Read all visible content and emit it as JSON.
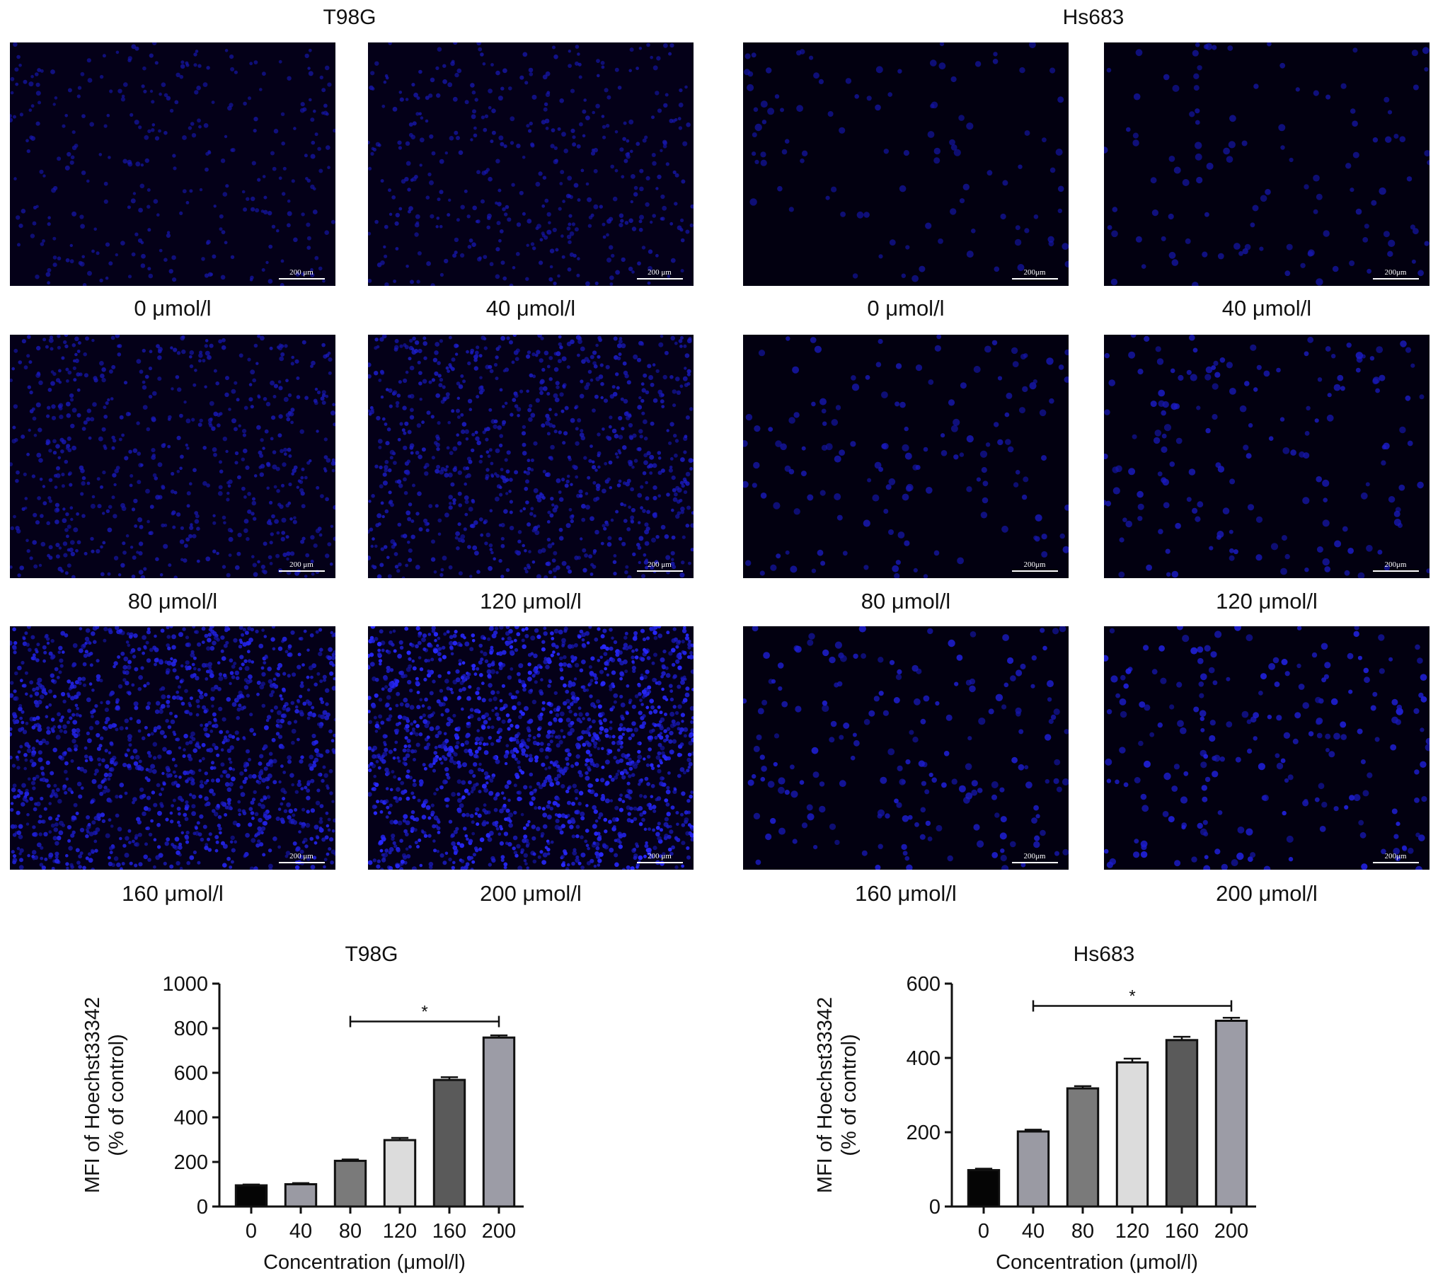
{
  "micrographs": {
    "groups": [
      {
        "title": "T98G",
        "panels": [
          {
            "caption": "0 μmol/l",
            "scale_bar": "200 μm",
            "density": 0.15
          },
          {
            "caption": "40 μmol/l",
            "scale_bar": "200 μm",
            "density": 0.22
          },
          {
            "caption": "80 μmol/l",
            "scale_bar": "200 μm",
            "density": 0.35
          },
          {
            "caption": "120 μmol/l",
            "scale_bar": "200 μm",
            "density": 0.5
          },
          {
            "caption": "160 μmol/l",
            "scale_bar": "200 μm",
            "density": 0.8
          },
          {
            "caption": "200 μmol/l",
            "scale_bar": "200 μm",
            "density": 1.0
          }
        ]
      },
      {
        "title": "Hs683",
        "panels": [
          {
            "caption": "0 μmol/l",
            "scale_bar": "200μm",
            "density": 0.12
          },
          {
            "caption": "40 μmol/l",
            "scale_bar": "200μm",
            "density": 0.18
          },
          {
            "caption": "80 μmol/l",
            "scale_bar": "200μm",
            "density": 0.35
          },
          {
            "caption": "120 μmol/l",
            "scale_bar": "200μm",
            "density": 0.45
          },
          {
            "caption": "160 μmol/l",
            "scale_bar": "200μm",
            "density": 0.6
          },
          {
            "caption": "200 μmol/l",
            "scale_bar": "200μm",
            "density": 0.7
          }
        ]
      }
    ]
  },
  "chart_data": [
    {
      "type": "bar",
      "title": "T98G",
      "xlabel": "Concentration (μmol/l)",
      "ylabel": "MFI of Hoechst33342 (% of control)",
      "ylabel_lines": [
        "MFI of Hoechst33342",
        "(% of control)"
      ],
      "categories": [
        "0",
        "40",
        "80",
        "120",
        "160",
        "200"
      ],
      "values": [
        95,
        100,
        205,
        298,
        568,
        758
      ],
      "errors": [
        4,
        5,
        6,
        10,
        12,
        10
      ],
      "ylim": [
        0,
        1000
      ],
      "yticks": [
        0,
        200,
        400,
        600,
        800,
        1000
      ],
      "bar_colors": [
        "#050505",
        "#9a9aa3",
        "#7a7a7a",
        "#dcdcdc",
        "#5a5a5a",
        "#9c9ca6"
      ],
      "significance": {
        "from": "80",
        "to": "200",
        "label": "*",
        "y": 830
      }
    },
    {
      "type": "bar",
      "title": "Hs683",
      "xlabel": "Concentration (μmol/l)",
      "ylabel": "MFI of Hoechst33342 (% of control)",
      "ylabel_lines": [
        "MFI of Hoechst33342",
        "(% of control)"
      ],
      "categories": [
        "0",
        "40",
        "80",
        "120",
        "160",
        "200"
      ],
      "values": [
        98,
        202,
        318,
        388,
        448,
        500
      ],
      "errors": [
        4,
        5,
        6,
        10,
        9,
        8
      ],
      "ylim": [
        0,
        600
      ],
      "yticks": [
        0,
        200,
        400,
        600
      ],
      "bar_colors": [
        "#050505",
        "#9a9aa3",
        "#7a7a7a",
        "#dcdcdc",
        "#5a5a5a",
        "#9c9ca6"
      ],
      "significance": {
        "from": "40",
        "to": "200",
        "label": "*",
        "y": 540
      }
    }
  ]
}
